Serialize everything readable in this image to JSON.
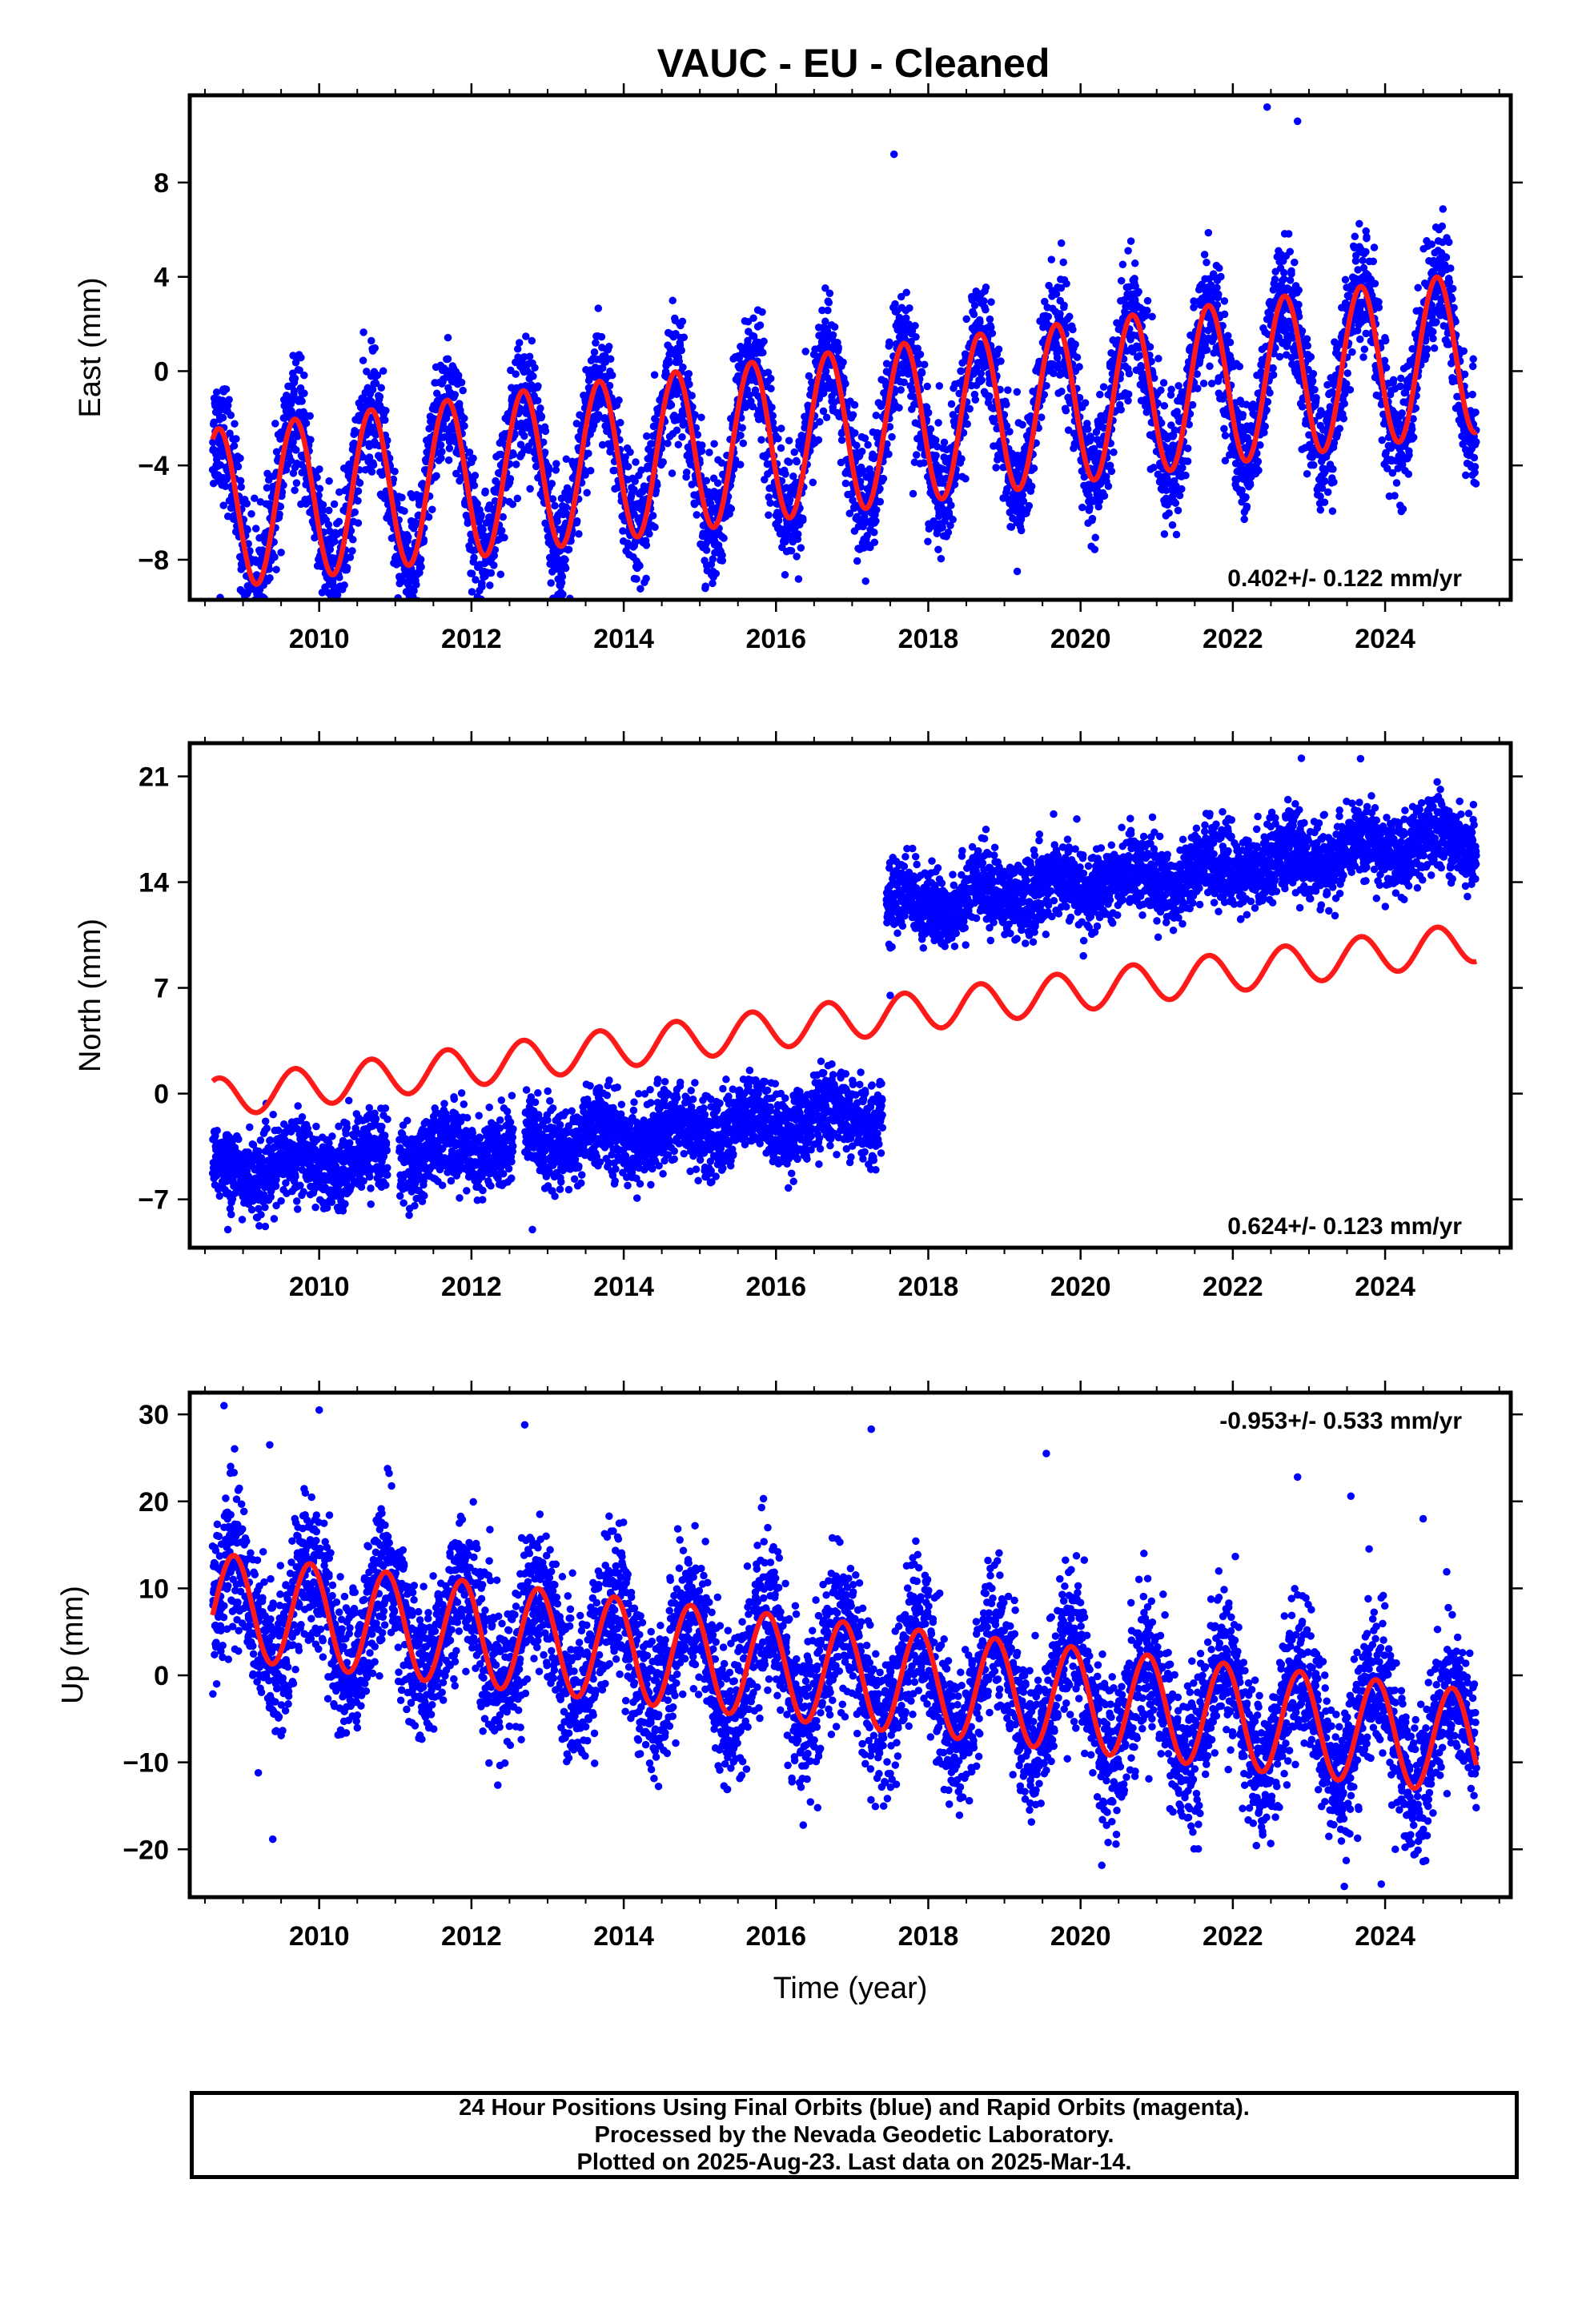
{
  "title": "VAUC  - EU - Cleaned",
  "chart_data": [
    {
      "type": "scatter",
      "component": "east",
      "ylabel": "East (mm)",
      "xlabel": "",
      "xlim": [
        2008.3,
        2025.65
      ],
      "ylim": [
        -9.7,
        11.7
      ],
      "xticks": [
        2010,
        2012,
        2014,
        2016,
        2018,
        2020,
        2022,
        2024
      ],
      "yticks": [
        -8,
        -4,
        0,
        4,
        8
      ],
      "rate_label": "0.402+/- 0.122 mm/yr",
      "rate_position": "bottom-right",
      "x_range": [
        2008.6,
        2025.2
      ],
      "model": {
        "color": "#ff1a1a",
        "offset": -2.9,
        "slope": 0.402,
        "ref_year": 2016.0,
        "annual_amplitude": 3.4,
        "annual_phase_year": 0.43,
        "step": null
      },
      "scatter": {
        "color": "#0000ff",
        "noise_sd": 1.25,
        "point_count": 6000
      },
      "outliers": [
        [
          2008.7,
          -9.6
        ],
        [
          2022.45,
          11.2
        ],
        [
          2022.85,
          10.6
        ],
        [
          2017.55,
          9.2
        ],
        [
          2021.9,
          -3.8
        ],
        [
          2017.8,
          -5.2
        ],
        [
          2011.3,
          -7.9
        ]
      ]
    },
    {
      "type": "scatter",
      "component": "north",
      "ylabel": "North (mm)",
      "xlabel": "",
      "xlim": [
        2008.3,
        2025.65
      ],
      "ylim": [
        -10.2,
        23.2
      ],
      "xticks": [
        2010,
        2012,
        2014,
        2016,
        2018,
        2020,
        2022,
        2024
      ],
      "yticks": [
        -7,
        0,
        7,
        14,
        21
      ],
      "rate_label": "0.624+/- 0.123 mm/yr",
      "rate_position": "bottom-right",
      "x_range": [
        2008.6,
        2025.2
      ],
      "model": {
        "color": "#ff1a1a",
        "offset": 4.3,
        "slope": 0.624,
        "ref_year": 2016.0,
        "annual_amplitude": 1.3,
        "annual_phase_year": 0.43,
        "step": null
      },
      "scatter": {
        "color": "#0000ff",
        "noise_sd": 1.25,
        "point_count": 6000,
        "segments": [
          {
            "start": 2008.6,
            "end": 2017.4,
            "offset": -5.2,
            "slope": 0.45,
            "ref_year": 2008.6
          },
          {
            "start": 2017.45,
            "end": 2025.2,
            "offset": 12.3,
            "slope": 0.6,
            "ref_year": 2017.45
          }
        ]
      },
      "outliers": [
        [
          2022.9,
          22.2
        ],
        [
          2008.8,
          -9.0
        ],
        [
          2012.8,
          -9.0
        ],
        [
          2017.5,
          6.5
        ]
      ]
    },
    {
      "type": "scatter",
      "component": "up",
      "ylabel": "Up (mm)",
      "xlabel": "Time (year)",
      "xlim": [
        2008.3,
        2025.65
      ],
      "ylim": [
        -25.5,
        32.5
      ],
      "xticks": [
        2010,
        2012,
        2014,
        2016,
        2018,
        2020,
        2022,
        2024
      ],
      "yticks": [
        -20,
        -10,
        0,
        10,
        20,
        30
      ],
      "rate_label": "-0.953+/- 0.533 mm/yr",
      "rate_position": "top-right",
      "x_range": [
        2008.6,
        2025.2
      ],
      "model": {
        "color": "#ff1a1a",
        "offset": 1.0,
        "slope": -0.953,
        "ref_year": 2016.0,
        "annual_amplitude": 6.0,
        "annual_phase_year": 0.63,
        "step": null
      },
      "scatter": {
        "color": "#0000ff",
        "noise_sd": 4.2,
        "point_count": 6000
      },
      "outliers": [
        [
          2008.75,
          31.0
        ],
        [
          2009.35,
          26.5
        ],
        [
          2010.0,
          30.5
        ],
        [
          2012.7,
          28.8
        ],
        [
          2017.25,
          28.3
        ],
        [
          2019.55,
          25.5
        ],
        [
          2022.85,
          22.8
        ],
        [
          2023.55,
          20.6
        ],
        [
          2024.5,
          18.0
        ],
        [
          2009.2,
          -11.2
        ],
        [
          2023.95,
          -24.0
        ]
      ]
    }
  ],
  "footer": {
    "line1": "24 Hour Positions Using Final Orbits (blue) and Rapid Orbits (magenta).",
    "line2": "Processed by the Nevada Geodetic Laboratory.",
    "line3": "Plotted on 2025-Aug-23. Last data on 2025-Mar-14."
  }
}
